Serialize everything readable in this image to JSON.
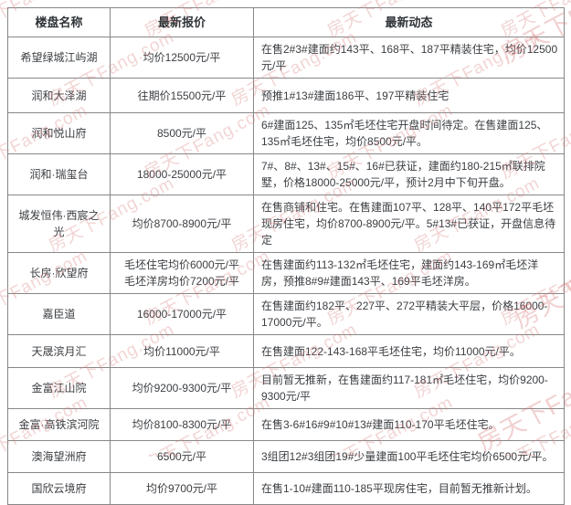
{
  "watermark": {
    "text": "房天下Fang.com",
    "text_short": "房天下Fang",
    "color": "#d97b7b"
  },
  "table": {
    "headers": [
      "楼盘名称",
      "最新报价",
      "最新动态"
    ],
    "rows": [
      {
        "name": "希望绿城江屿湖",
        "price": "均价12500元/平",
        "news": "在售2#3#建面约143平、168平、187平精装住宅，均价12500元/平"
      },
      {
        "name": "润和大泽湖",
        "price": "往期价15500元/平",
        "news": "预推1#13#建面186平、197平精装住宅"
      },
      {
        "name": "润和悦山府",
        "price": "8500元/平",
        "news": "6#建面125、135㎡毛坯住宅开盘时间待定。在售建面125、135㎡毛坯住宅，均价8500元/平。"
      },
      {
        "name": "润和·瑞玺台",
        "price": "18000-25000元/平",
        "news": "7#、8#、13#、15#、16#已获证，建面约180-215㎡联排院墅，价格18000-25000元/平，预计2月中下旬开盘。"
      },
      {
        "name": "城发恒伟·西宸之光",
        "price": "均价8700-8900元/平",
        "news": "在售商铺和住宅。在售建面107平、128平、140平172平毛坯现房住宅，均价8700-8900元/平。5#13#已获证，开盘信息待定"
      },
      {
        "name": "长房·欣望府",
        "price": "毛坯住宅均价6000元/平\n毛坯洋房均价7200元/平",
        "news": "在售建面约113-132㎡毛坯住宅，建面约143-169㎡毛坯洋房，预推8#9#建面143平、169平毛坯洋房。"
      },
      {
        "name": "嘉臣道",
        "price": "16000-17000元/平",
        "news": "在售建面约182平、227平、272平精装大平层，价格16000-17000元/平。"
      },
      {
        "name": "天晟滨月汇",
        "price": "均价11000元/平",
        "news": "在售建面122-143-168平毛坯住宅，均价11000元/平。"
      },
      {
        "name": "金富江山院",
        "price": "均价9200-9300元/平",
        "news": "目前暂无推新，在售建面约117-181㎡毛坯住宅，均价9200-9300元/平"
      },
      {
        "name": "金富·高铁滨河院",
        "price": "均价8100-8300元/平",
        "news": "在售3-6#16#9#10#13#建面110-170平毛坯住宅。"
      },
      {
        "name": "澳海望洲府",
        "price": "6500元/平",
        "news": "3组团12#3组团19#少量建面100平毛坯住宅均价6500元/平。"
      },
      {
        "name": "国欣云境府",
        "price": "均价9700元/平",
        "news": "在售1-10#建面110-185平现房住宅，目前暂无推新计划。"
      }
    ]
  }
}
